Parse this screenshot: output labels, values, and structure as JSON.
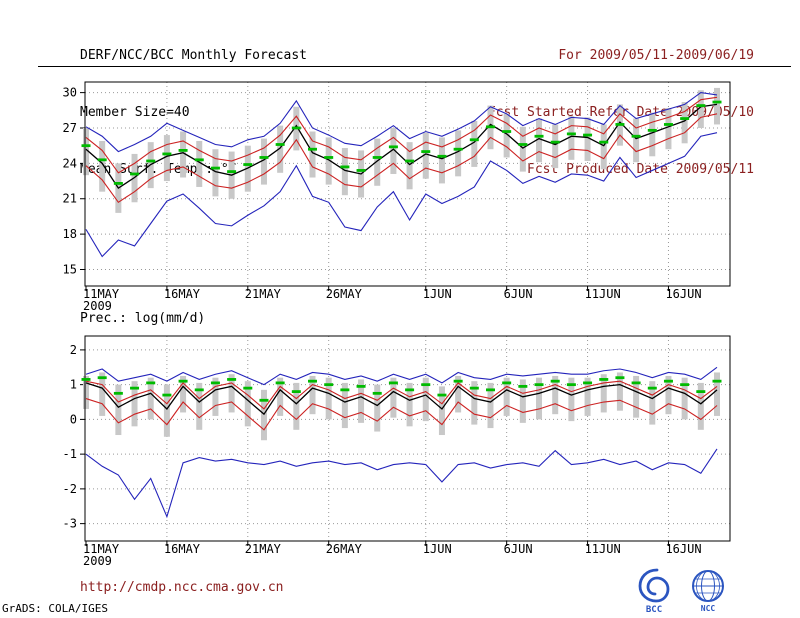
{
  "header": {
    "left": [
      "DERF/NCC/BCC Monthly Forecast",
      "Member Size=40",
      "Mean Surf. Temp.: °C"
    ],
    "right": [
      "For 2009/05/11-2009/06/19",
      "Fcst Started Refer Date 2009/05/10",
      "Fcst Produced Date 2009/05/11"
    ]
  },
  "footer": {
    "url": "http://cmdp.ncc.cma.gov.cn",
    "grads_credit": "GrADS: COLA/IGES",
    "logos": [
      {
        "label": "BCC"
      },
      {
        "label": "NCC"
      }
    ]
  },
  "colors": {
    "header_left_text": "#000000",
    "header_right_text": "#8b2020",
    "url_text": "#8b2020",
    "grid": "#999999",
    "plot_border": "#000000",
    "tick_text": "#000000",
    "bar_gray": "#c8c8c8",
    "line_blue": "#2424bb",
    "line_red": "#cc2222",
    "line_black": "#000000",
    "mean_green": "#00bb00",
    "logo_blue": "#2b55c0"
  },
  "chart_data": [
    {
      "type": "line",
      "title": "Mean Surf. Temp.: °C",
      "ylabel": "°C",
      "n_days": 40,
      "x_tick_days": [
        1,
        6,
        11,
        16,
        22,
        27,
        32,
        37
      ],
      "x_tick_labels": [
        "11MAY",
        "16MAY",
        "21MAY",
        "26MAY",
        "1JUN",
        "6JUN",
        "11JUN",
        "16JUN"
      ],
      "x_year_label": "2009",
      "ylim": [
        13.6,
        30.9
      ],
      "yticks": [
        15,
        18,
        21,
        24,
        27,
        30
      ],
      "grid": true,
      "legend": "none",
      "bars": {
        "name": "ensemble-spread",
        "color": "#c8c8c8",
        "low": [
          23.0,
          21.6,
          19.8,
          20.7,
          21.9,
          22.5,
          22.8,
          22.0,
          21.2,
          21.0,
          21.6,
          22.2,
          23.2,
          25.1,
          22.8,
          22.2,
          21.3,
          21.1,
          22.1,
          23.1,
          21.8,
          22.7,
          22.3,
          22.9,
          23.7,
          25.2,
          24.5,
          23.3,
          24.1,
          23.6,
          24.3,
          24.2,
          23.5,
          25.5,
          24.1,
          24.6,
          25.2,
          25.7,
          27.0,
          27.3
        ],
        "high": [
          27.0,
          25.9,
          24.0,
          24.8,
          25.8,
          26.4,
          26.7,
          25.9,
          25.2,
          25.0,
          25.5,
          26.1,
          27.2,
          28.8,
          26.7,
          26.2,
          25.3,
          25.1,
          26.1,
          27.0,
          25.8,
          26.6,
          26.2,
          26.8,
          27.6,
          28.9,
          28.2,
          27.1,
          27.8,
          27.3,
          28.0,
          27.9,
          27.3,
          29.0,
          27.8,
          28.3,
          28.7,
          29.2,
          30.2,
          30.4
        ]
      },
      "series": [
        {
          "name": "ensemble-max",
          "color": "#2424bb",
          "style": "line",
          "values": [
            27.1,
            26.3,
            25.0,
            25.6,
            26.3,
            27.4,
            26.8,
            26.2,
            25.6,
            25.4,
            26.0,
            26.3,
            27.4,
            29.3,
            27.0,
            26.4,
            25.7,
            25.5,
            26.3,
            27.2,
            26.1,
            26.7,
            26.3,
            26.9,
            27.6,
            28.8,
            28.2,
            27.2,
            27.8,
            27.3,
            27.9,
            27.8,
            27.3,
            28.9,
            27.8,
            28.2,
            28.6,
            29.0,
            30.0,
            29.8
          ]
        },
        {
          "name": "ensemble-min",
          "color": "#2424bb",
          "style": "line",
          "values": [
            18.4,
            16.1,
            17.5,
            17.0,
            18.9,
            20.8,
            21.4,
            20.2,
            18.9,
            18.7,
            19.6,
            20.4,
            21.6,
            23.8,
            21.2,
            20.7,
            18.6,
            18.3,
            20.3,
            21.6,
            19.2,
            21.4,
            20.6,
            21.2,
            22.0,
            24.2,
            23.4,
            22.3,
            22.9,
            22.4,
            23.1,
            23.0,
            22.5,
            24.5,
            22.8,
            23.4,
            24.0,
            24.6,
            26.3,
            26.6
          ]
        },
        {
          "name": "upper-quartile",
          "color": "#cc2222",
          "style": "line",
          "values": [
            26.2,
            25.1,
            23.2,
            24.0,
            25.0,
            25.6,
            25.9,
            25.1,
            24.4,
            24.2,
            24.7,
            25.3,
            26.4,
            28.0,
            25.9,
            25.4,
            24.5,
            24.3,
            25.3,
            26.2,
            25.0,
            25.8,
            25.4,
            26.0,
            26.8,
            28.1,
            27.4,
            26.3,
            27.0,
            26.5,
            27.2,
            27.1,
            26.5,
            28.2,
            27.0,
            27.5,
            27.9,
            28.4,
            29.4,
            29.6
          ]
        },
        {
          "name": "lower-quartile",
          "color": "#cc2222",
          "style": "line",
          "values": [
            23.8,
            22.6,
            20.7,
            21.6,
            22.7,
            23.4,
            23.7,
            22.9,
            22.1,
            21.9,
            22.4,
            23.1,
            24.1,
            26.0,
            23.7,
            23.1,
            22.2,
            22.0,
            23.0,
            24.0,
            22.7,
            23.6,
            23.2,
            23.8,
            24.6,
            26.2,
            25.4,
            24.2,
            25.0,
            24.5,
            25.2,
            25.1,
            24.4,
            26.4,
            25.0,
            25.5,
            26.1,
            26.6,
            27.9,
            28.2
          ]
        },
        {
          "name": "median",
          "color": "#000000",
          "style": "line",
          "width": 1.3,
          "values": [
            25.2,
            24.0,
            21.9,
            22.8,
            23.9,
            24.6,
            24.9,
            24.1,
            23.3,
            23.0,
            23.6,
            24.3,
            25.3,
            27.2,
            24.9,
            24.3,
            23.4,
            23.1,
            24.2,
            25.2,
            23.9,
            24.8,
            24.4,
            25.0,
            25.8,
            27.3,
            26.5,
            25.3,
            26.1,
            25.6,
            26.3,
            26.2,
            25.5,
            27.5,
            26.1,
            26.6,
            27.1,
            27.6,
            28.8,
            29.0
          ]
        },
        {
          "name": "ensemble-mean",
          "color": "#00bb00",
          "style": "marks",
          "values": [
            25.5,
            24.3,
            22.3,
            23.1,
            24.2,
            24.8,
            25.1,
            24.3,
            23.6,
            23.3,
            23.9,
            24.5,
            25.6,
            27.0,
            25.2,
            24.5,
            23.7,
            23.4,
            24.5,
            25.4,
            24.2,
            25.0,
            24.6,
            25.2,
            26.0,
            27.1,
            26.7,
            25.6,
            26.3,
            25.8,
            26.5,
            26.4,
            25.8,
            27.3,
            26.3,
            26.8,
            27.3,
            27.8,
            28.9,
            29.2
          ]
        }
      ]
    },
    {
      "type": "line",
      "title": "Prec.: log(mm/d)",
      "ylabel": "log(mm/d)",
      "n_days": 40,
      "x_tick_days": [
        1,
        6,
        11,
        16,
        22,
        27,
        32,
        37
      ],
      "x_tick_labels": [
        "11MAY",
        "16MAY",
        "21MAY",
        "26MAY",
        "1JUN",
        "6JUN",
        "11JUN",
        "16JUN"
      ],
      "x_year_label": "2009",
      "ylim": [
        -3.5,
        2.4
      ],
      "yticks": [
        -3,
        -2,
        -1,
        0,
        1,
        2
      ],
      "grid": true,
      "legend": "none",
      "bars": {
        "name": "ensemble-spread",
        "color": "#c8c8c8",
        "low": [
          0.3,
          0.1,
          -0.45,
          -0.2,
          0.0,
          -0.5,
          0.2,
          -0.3,
          0.1,
          0.2,
          -0.2,
          -0.6,
          0.1,
          -0.3,
          0.15,
          0.0,
          -0.25,
          -0.1,
          -0.35,
          0.05,
          -0.2,
          -0.05,
          -0.45,
          0.2,
          -0.15,
          -0.25,
          0.1,
          -0.1,
          0.0,
          0.15,
          -0.05,
          0.1,
          0.2,
          0.25,
          0.05,
          -0.15,
          0.15,
          0.0,
          -0.3,
          0.1
        ],
        "high": [
          1.25,
          1.35,
          1.0,
          1.1,
          1.2,
          1.0,
          1.25,
          1.05,
          1.2,
          1.3,
          1.1,
          0.85,
          1.2,
          1.05,
          1.25,
          1.2,
          1.05,
          1.15,
          1.0,
          1.2,
          1.05,
          1.2,
          0.95,
          1.25,
          1.1,
          1.05,
          1.2,
          1.15,
          1.2,
          1.25,
          1.2,
          1.2,
          1.3,
          1.35,
          1.25,
          1.1,
          1.25,
          1.2,
          1.05,
          1.35
        ]
      },
      "series": [
        {
          "name": "ensemble-max",
          "color": "#2424bb",
          "style": "line",
          "values": [
            1.3,
            1.45,
            1.1,
            1.2,
            1.3,
            1.1,
            1.35,
            1.15,
            1.3,
            1.4,
            1.2,
            1.0,
            1.3,
            1.15,
            1.35,
            1.3,
            1.15,
            1.25,
            1.1,
            1.3,
            1.15,
            1.3,
            1.05,
            1.35,
            1.2,
            1.15,
            1.3,
            1.25,
            1.3,
            1.35,
            1.3,
            1.3,
            1.4,
            1.45,
            1.35,
            1.2,
            1.35,
            1.3,
            1.15,
            1.5
          ]
        },
        {
          "name": "ensemble-min",
          "color": "#2424bb",
          "style": "line",
          "values": [
            -1.0,
            -1.35,
            -1.6,
            -2.3,
            -1.7,
            -2.8,
            -1.25,
            -1.1,
            -1.2,
            -1.15,
            -1.25,
            -1.3,
            -1.2,
            -1.35,
            -1.25,
            -1.2,
            -1.3,
            -1.25,
            -1.45,
            -1.3,
            -1.25,
            -1.3,
            -1.8,
            -1.3,
            -1.25,
            -1.4,
            -1.3,
            -1.25,
            -1.35,
            -0.9,
            -1.3,
            -1.25,
            -1.15,
            -1.3,
            -1.2,
            -1.45,
            -1.25,
            -1.3,
            -1.55,
            -0.85
          ]
        },
        {
          "name": "upper-quartile",
          "color": "#cc2222",
          "style": "line",
          "values": [
            1.1,
            1.0,
            0.5,
            0.7,
            0.85,
            0.45,
            1.05,
            0.6,
            0.95,
            1.05,
            0.7,
            0.3,
            0.95,
            0.6,
            1.0,
            0.85,
            0.6,
            0.75,
            0.55,
            0.9,
            0.65,
            0.8,
            0.45,
            1.05,
            0.7,
            0.6,
            0.95,
            0.75,
            0.85,
            1.0,
            0.8,
            0.95,
            1.05,
            1.1,
            0.9,
            0.7,
            1.0,
            0.85,
            0.6,
            0.95
          ]
        },
        {
          "name": "lower-quartile",
          "color": "#cc2222",
          "style": "line",
          "values": [
            0.6,
            0.45,
            -0.1,
            0.15,
            0.3,
            -0.15,
            0.5,
            0.05,
            0.4,
            0.5,
            0.1,
            -0.3,
            0.4,
            0.0,
            0.45,
            0.3,
            0.05,
            0.2,
            -0.05,
            0.35,
            0.1,
            0.25,
            -0.15,
            0.5,
            0.15,
            0.05,
            0.4,
            0.2,
            0.3,
            0.45,
            0.25,
            0.4,
            0.5,
            0.55,
            0.35,
            0.15,
            0.45,
            0.3,
            0.0,
            0.4
          ]
        },
        {
          "name": "median",
          "color": "#000000",
          "style": "line",
          "width": 1.3,
          "values": [
            1.05,
            0.9,
            0.35,
            0.6,
            0.75,
            0.3,
            0.95,
            0.5,
            0.85,
            0.95,
            0.55,
            0.15,
            0.85,
            0.45,
            0.9,
            0.75,
            0.5,
            0.65,
            0.4,
            0.8,
            0.55,
            0.7,
            0.3,
            0.95,
            0.6,
            0.5,
            0.85,
            0.65,
            0.75,
            0.9,
            0.7,
            0.85,
            0.95,
            1.0,
            0.8,
            0.6,
            0.9,
            0.75,
            0.45,
            0.85
          ]
        },
        {
          "name": "ensemble-mean",
          "color": "#00bb00",
          "style": "marks",
          "values": [
            1.15,
            1.2,
            0.75,
            0.9,
            1.05,
            0.7,
            1.1,
            0.85,
            1.05,
            1.15,
            0.9,
            0.55,
            1.05,
            0.8,
            1.1,
            1.0,
            0.85,
            0.95,
            0.75,
            1.05,
            0.85,
            1.0,
            0.7,
            1.1,
            0.9,
            0.85,
            1.05,
            0.95,
            1.0,
            1.1,
            1.0,
            1.05,
            1.15,
            1.2,
            1.05,
            0.9,
            1.1,
            1.0,
            0.8,
            1.1
          ]
        }
      ]
    }
  ]
}
